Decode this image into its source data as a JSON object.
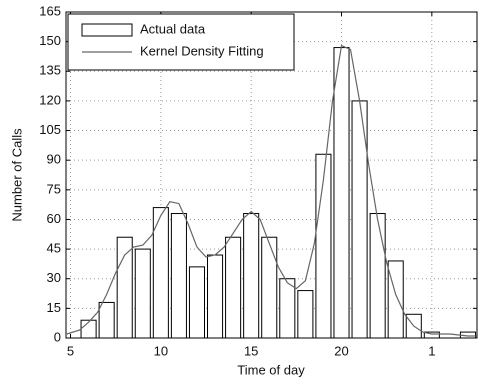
{
  "chart_data": {
    "type": "histogram",
    "xlabel": "Time of day",
    "ylabel": "Number of Calls",
    "bar_name": "Actual data",
    "bar_color": "#ffffff",
    "bins": [
      5.5,
      6.5,
      7.5,
      8.5,
      9.5,
      10.5,
      11.5,
      12.5,
      13.5,
      14.5,
      15.5,
      16.5,
      17.5,
      18.5,
      19.5,
      20.5,
      21.5,
      22.5,
      23.5,
      24.5,
      25.5,
      26.5,
      27.5
    ],
    "values": [
      9,
      18,
      51,
      45,
      66,
      63,
      36,
      42,
      51,
      63,
      51,
      30,
      24,
      93,
      147,
      120,
      63,
      39,
      12,
      3,
      0,
      3
    ],
    "line": {
      "name": "Kernel Density Fitting",
      "color": "#666666",
      "x": [
        4.8,
        5.5,
        6,
        6.5,
        7,
        7.5,
        8,
        8.5,
        9,
        9.5,
        10,
        10.5,
        11,
        11.5,
        12,
        12.5,
        13,
        13.5,
        14,
        14.5,
        15,
        15.5,
        16,
        16.5,
        17,
        17.5,
        18,
        18.5,
        19,
        19.5,
        20,
        20.5,
        21,
        21.5,
        22,
        22.5,
        23,
        23.5,
        24,
        24.5,
        25,
        26,
        27,
        27.5
      ],
      "values": [
        2,
        4,
        8,
        13,
        22,
        33,
        42,
        46,
        47,
        52,
        62,
        69,
        68,
        58,
        46,
        41,
        42,
        46,
        53,
        60,
        64,
        60,
        48,
        36,
        28,
        25,
        29,
        48,
        80,
        120,
        148,
        146,
        120,
        88,
        60,
        38,
        22,
        12,
        6,
        3,
        2,
        2,
        1,
        1
      ]
    },
    "xlim": [
      4.75,
      27.5
    ],
    "xticks": [
      5,
      10,
      15,
      20,
      {
        "value": 25,
        "label": "1"
      }
    ],
    "ylim": [
      0,
      165
    ],
    "yticks": [
      0,
      15,
      30,
      45,
      60,
      75,
      90,
      105,
      120,
      135,
      150,
      165
    ],
    "grid": true,
    "legend": "upper left"
  }
}
